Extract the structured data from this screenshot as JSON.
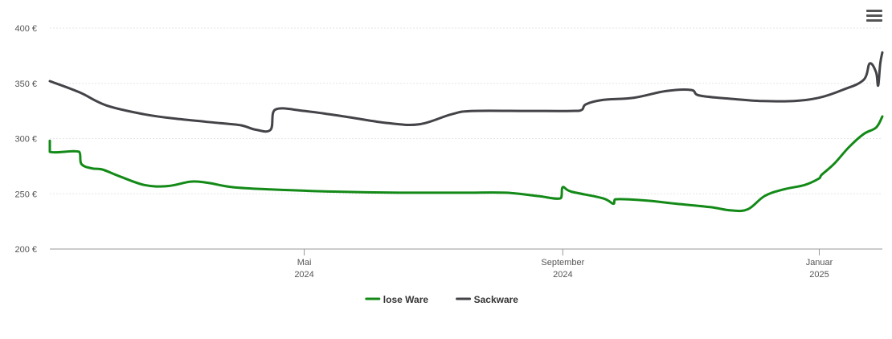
{
  "menu_icon": "hamburger-menu-icon",
  "colors": {
    "lose_ware": "#138a17",
    "sackware": "#434348",
    "grid": "#e6e6e6",
    "axis": "#999999"
  },
  "chart_data": {
    "type": "line",
    "ylim": [
      200,
      400
    ],
    "y_ticks": [
      {
        "value": 400,
        "label": "400 €"
      },
      {
        "value": 350,
        "label": "350 €"
      },
      {
        "value": 300,
        "label": "300 €"
      },
      {
        "value": 250,
        "label": "250 €"
      },
      {
        "value": 200,
        "label": "200 €"
      }
    ],
    "x_range": [
      "2024-01-01",
      "2025-01-31"
    ],
    "x_ticks": [
      {
        "date": "2024-05-01",
        "month": "Mai",
        "year": "2024"
      },
      {
        "date": "2024-09-01",
        "month": "September",
        "year": "2024"
      },
      {
        "date": "2025-01-01",
        "month": "Januar",
        "year": "2025"
      }
    ],
    "legend_position": "bottom-center",
    "series": [
      {
        "name": "lose Ware",
        "color": "#138a17",
        "points": [
          [
            "2024-01-01",
            298
          ],
          [
            "2024-01-01",
            288
          ],
          [
            "2024-01-15",
            288
          ],
          [
            "2024-01-16",
            277
          ],
          [
            "2024-01-21",
            273
          ],
          [
            "2024-01-26",
            272
          ],
          [
            "2024-02-03",
            266
          ],
          [
            "2024-02-15",
            258
          ],
          [
            "2024-02-26",
            257
          ],
          [
            "2024-03-08",
            261
          ],
          [
            "2024-03-16",
            260
          ],
          [
            "2024-03-28",
            256
          ],
          [
            "2024-04-15",
            254
          ],
          [
            "2024-05-15",
            252
          ],
          [
            "2024-06-15",
            251
          ],
          [
            "2024-07-15",
            251
          ],
          [
            "2024-08-05",
            251
          ],
          [
            "2024-08-20",
            248
          ],
          [
            "2024-08-31",
            246
          ],
          [
            "2024-09-01",
            256
          ],
          [
            "2024-09-05",
            252
          ],
          [
            "2024-09-20",
            246
          ],
          [
            "2024-09-25",
            241
          ],
          [
            "2024-09-26",
            245
          ],
          [
            "2024-10-10",
            244
          ],
          [
            "2024-10-25",
            241
          ],
          [
            "2024-11-10",
            238
          ],
          [
            "2024-11-20",
            235
          ],
          [
            "2024-11-28",
            236
          ],
          [
            "2024-12-06",
            248
          ],
          [
            "2024-12-15",
            254
          ],
          [
            "2024-12-25",
            258
          ],
          [
            "2025-01-01",
            264
          ],
          [
            "2025-01-02",
            267
          ],
          [
            "2025-01-08",
            277
          ],
          [
            "2025-01-15",
            292
          ],
          [
            "2025-01-22",
            304
          ],
          [
            "2025-01-28",
            310
          ],
          [
            "2025-01-31",
            320
          ]
        ]
      },
      {
        "name": "Sackware",
        "color": "#434348",
        "points": [
          [
            "2024-01-01",
            352
          ],
          [
            "2024-01-15",
            342
          ],
          [
            "2024-01-28",
            330
          ],
          [
            "2024-02-15",
            322
          ],
          [
            "2024-03-01",
            318
          ],
          [
            "2024-03-22",
            314
          ],
          [
            "2024-04-01",
            312
          ],
          [
            "2024-04-08",
            308
          ],
          [
            "2024-04-15",
            308
          ],
          [
            "2024-04-17",
            326
          ],
          [
            "2024-05-01",
            325
          ],
          [
            "2024-05-20",
            320
          ],
          [
            "2024-06-10",
            314
          ],
          [
            "2024-06-25",
            313
          ],
          [
            "2024-07-10",
            322
          ],
          [
            "2024-07-20",
            325
          ],
          [
            "2024-08-15",
            325
          ],
          [
            "2024-09-05",
            325
          ],
          [
            "2024-09-10",
            326
          ],
          [
            "2024-09-12",
            331
          ],
          [
            "2024-09-20",
            335
          ],
          [
            "2024-10-05",
            337
          ],
          [
            "2024-10-20",
            343
          ],
          [
            "2024-11-01",
            344
          ],
          [
            "2024-11-05",
            339
          ],
          [
            "2024-11-20",
            336
          ],
          [
            "2024-12-05",
            334
          ],
          [
            "2024-12-20",
            334
          ],
          [
            "2025-01-01",
            337
          ],
          [
            "2025-01-12",
            344
          ],
          [
            "2025-01-22",
            353
          ],
          [
            "2025-01-25",
            368
          ],
          [
            "2025-01-28",
            360
          ],
          [
            "2025-01-29",
            348
          ],
          [
            "2025-01-30",
            368
          ],
          [
            "2025-01-31",
            378
          ]
        ]
      }
    ]
  }
}
